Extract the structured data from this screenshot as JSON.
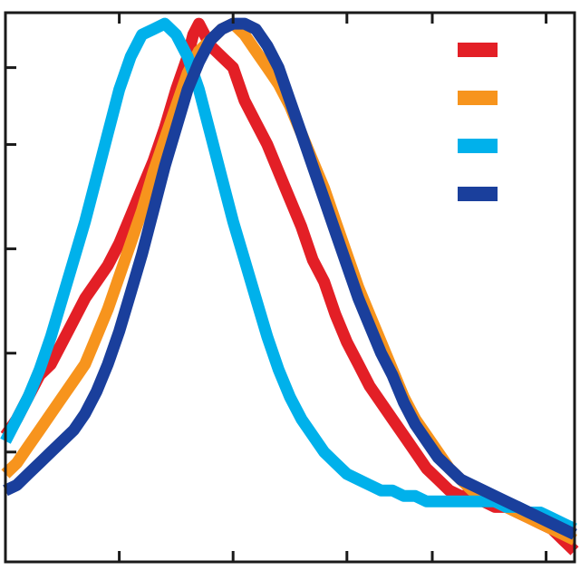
{
  "chart_data": {
    "type": "line",
    "title": "",
    "xlabel": "",
    "ylabel": "",
    "xlim": [
      0,
      100
    ],
    "ylim": [
      0,
      100
    ],
    "x_ticks": [
      20,
      40,
      60,
      75,
      95
    ],
    "y_ticks": [
      20,
      38,
      57,
      76,
      90
    ],
    "grid": false,
    "legend": {
      "placement": "top-right",
      "labels_printed": false
    },
    "series": [
      {
        "color": "#e31f26",
        "points": [
          [
            0,
            23
          ],
          [
            2,
            26
          ],
          [
            4,
            30
          ],
          [
            6,
            34
          ],
          [
            8,
            36
          ],
          [
            10,
            40
          ],
          [
            12,
            44
          ],
          [
            14,
            48
          ],
          [
            16,
            51
          ],
          [
            18,
            54
          ],
          [
            20,
            58
          ],
          [
            22,
            63
          ],
          [
            24,
            68
          ],
          [
            26,
            73
          ],
          [
            28,
            79
          ],
          [
            30,
            86
          ],
          [
            32,
            92
          ],
          [
            33,
            96
          ],
          [
            34,
            98
          ],
          [
            35,
            96
          ],
          [
            36,
            94
          ],
          [
            38,
            92
          ],
          [
            40,
            90
          ],
          [
            42,
            84
          ],
          [
            44,
            80
          ],
          [
            46,
            76
          ],
          [
            48,
            71
          ],
          [
            50,
            66
          ],
          [
            52,
            61
          ],
          [
            54,
            55
          ],
          [
            56,
            51
          ],
          [
            58,
            45
          ],
          [
            60,
            40
          ],
          [
            62,
            36
          ],
          [
            64,
            32
          ],
          [
            66,
            29
          ],
          [
            68,
            26
          ],
          [
            70,
            23
          ],
          [
            72,
            20
          ],
          [
            74,
            17
          ],
          [
            76,
            15
          ],
          [
            78,
            13
          ],
          [
            80,
            12
          ],
          [
            82,
            12
          ],
          [
            84,
            11
          ],
          [
            86,
            10
          ],
          [
            88,
            10
          ],
          [
            90,
            9
          ],
          [
            92,
            8
          ],
          [
            94,
            7
          ],
          [
            96,
            6
          ],
          [
            98,
            4
          ],
          [
            100,
            2
          ]
        ]
      },
      {
        "color": "#f7941d",
        "points": [
          [
            0,
            16
          ],
          [
            2,
            18
          ],
          [
            4,
            21
          ],
          [
            6,
            24
          ],
          [
            8,
            27
          ],
          [
            10,
            30
          ],
          [
            12,
            33
          ],
          [
            14,
            36
          ],
          [
            16,
            41
          ],
          [
            18,
            46
          ],
          [
            20,
            52
          ],
          [
            22,
            58
          ],
          [
            24,
            64
          ],
          [
            26,
            71
          ],
          [
            28,
            77
          ],
          [
            30,
            83
          ],
          [
            32,
            89
          ],
          [
            34,
            93
          ],
          [
            36,
            95
          ],
          [
            38,
            97
          ],
          [
            40,
            98
          ],
          [
            42,
            96
          ],
          [
            44,
            93
          ],
          [
            46,
            90
          ],
          [
            48,
            87
          ],
          [
            50,
            83
          ],
          [
            52,
            78
          ],
          [
            54,
            73
          ],
          [
            56,
            68
          ],
          [
            58,
            62
          ],
          [
            60,
            56
          ],
          [
            62,
            50
          ],
          [
            64,
            45
          ],
          [
            66,
            40
          ],
          [
            68,
            35
          ],
          [
            70,
            30
          ],
          [
            72,
            26
          ],
          [
            74,
            23
          ],
          [
            76,
            20
          ],
          [
            78,
            17
          ],
          [
            80,
            15
          ],
          [
            82,
            13
          ],
          [
            84,
            12
          ],
          [
            86,
            11
          ],
          [
            88,
            10
          ],
          [
            90,
            9
          ],
          [
            92,
            8
          ],
          [
            94,
            7
          ],
          [
            96,
            6
          ],
          [
            98,
            5
          ],
          [
            100,
            4
          ]
        ]
      },
      {
        "color": "#00b1eb",
        "points": [
          [
            0,
            22
          ],
          [
            2,
            26
          ],
          [
            4,
            30
          ],
          [
            6,
            35
          ],
          [
            8,
            41
          ],
          [
            10,
            48
          ],
          [
            12,
            55
          ],
          [
            14,
            62
          ],
          [
            16,
            70
          ],
          [
            18,
            78
          ],
          [
            20,
            86
          ],
          [
            22,
            92
          ],
          [
            24,
            96
          ],
          [
            26,
            97
          ],
          [
            28,
            98
          ],
          [
            30,
            96
          ],
          [
            32,
            92
          ],
          [
            34,
            86
          ],
          [
            36,
            78
          ],
          [
            38,
            70
          ],
          [
            40,
            62
          ],
          [
            42,
            55
          ],
          [
            44,
            48
          ],
          [
            46,
            41
          ],
          [
            48,
            35
          ],
          [
            50,
            30
          ],
          [
            52,
            26
          ],
          [
            54,
            23
          ],
          [
            56,
            20
          ],
          [
            58,
            18
          ],
          [
            60,
            16
          ],
          [
            62,
            15
          ],
          [
            64,
            14
          ],
          [
            66,
            13
          ],
          [
            68,
            13
          ],
          [
            70,
            12
          ],
          [
            72,
            12
          ],
          [
            74,
            11
          ],
          [
            76,
            11
          ],
          [
            78,
            11
          ],
          [
            80,
            11
          ],
          [
            82,
            11
          ],
          [
            84,
            11
          ],
          [
            86,
            11
          ],
          [
            88,
            10
          ],
          [
            90,
            10
          ],
          [
            92,
            9
          ],
          [
            94,
            9
          ],
          [
            96,
            8
          ],
          [
            98,
            7
          ],
          [
            100,
            6
          ]
        ]
      },
      {
        "color": "#1a3f9c",
        "points": [
          [
            0,
            13
          ],
          [
            2,
            14
          ],
          [
            4,
            16
          ],
          [
            6,
            18
          ],
          [
            8,
            20
          ],
          [
            10,
            22
          ],
          [
            12,
            24
          ],
          [
            14,
            27
          ],
          [
            16,
            31
          ],
          [
            18,
            36
          ],
          [
            20,
            42
          ],
          [
            22,
            49
          ],
          [
            24,
            56
          ],
          [
            26,
            64
          ],
          [
            28,
            72
          ],
          [
            30,
            79
          ],
          [
            32,
            86
          ],
          [
            34,
            91
          ],
          [
            36,
            95
          ],
          [
            38,
            97
          ],
          [
            40,
            98
          ],
          [
            42,
            98
          ],
          [
            44,
            97
          ],
          [
            46,
            94
          ],
          [
            48,
            90
          ],
          [
            50,
            84
          ],
          [
            52,
            78
          ],
          [
            54,
            72
          ],
          [
            56,
            66
          ],
          [
            58,
            60
          ],
          [
            60,
            54
          ],
          [
            62,
            48
          ],
          [
            64,
            43
          ],
          [
            66,
            38
          ],
          [
            68,
            34
          ],
          [
            70,
            29
          ],
          [
            72,
            25
          ],
          [
            74,
            22
          ],
          [
            76,
            19
          ],
          [
            78,
            17
          ],
          [
            80,
            15
          ],
          [
            82,
            14
          ],
          [
            84,
            13
          ],
          [
            86,
            12
          ],
          [
            88,
            11
          ],
          [
            90,
            10
          ],
          [
            92,
            9
          ],
          [
            94,
            8
          ],
          [
            96,
            7
          ],
          [
            98,
            6
          ],
          [
            100,
            5
          ]
        ]
      }
    ]
  }
}
